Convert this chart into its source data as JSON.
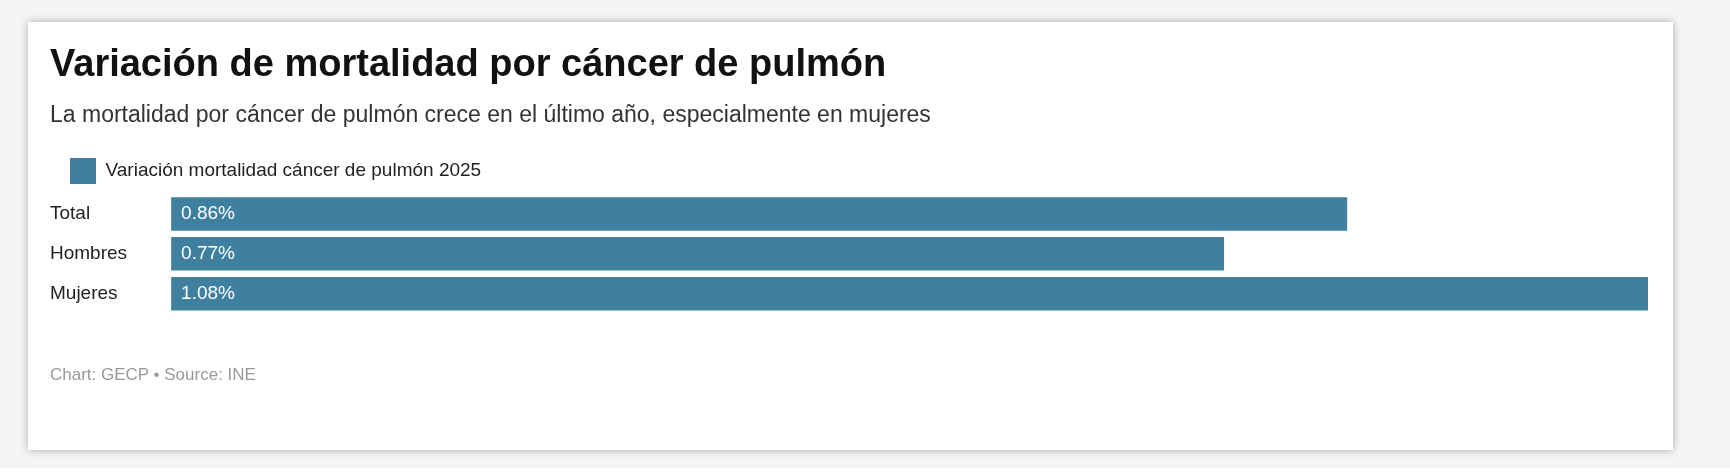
{
  "chart_data": {
    "type": "bar",
    "orientation": "horizontal",
    "title": "Variación de mortalidad por cáncer de pulmón",
    "subtitle": "La mortalidad por cáncer de pulmón crece en el último año, especialmente en mujeres",
    "categories": [
      "Total",
      "Hombres",
      "Mujeres"
    ],
    "series": [
      {
        "name": "Variación mortalidad cáncer de pulmón 2025",
        "color": "#3f80a1",
        "values": [
          0.86,
          0.77,
          1.08
        ],
        "value_labels": [
          "0.86%",
          "0.77%",
          "1.08%"
        ]
      }
    ],
    "legend": "top left",
    "grid": false,
    "tick_labels": "y",
    "annotations": [
      "Chart: GECP • Source: INE"
    ]
  }
}
